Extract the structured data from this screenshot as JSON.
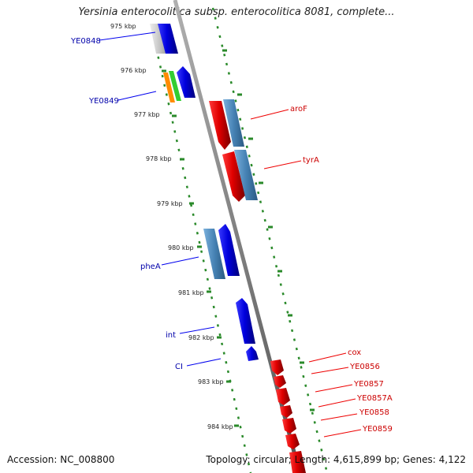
{
  "title": "Yersinia enterocolitica subsp. enterocolitica 8081, complete...",
  "footer": {
    "accession": "Accession: NC_008800",
    "topology": "Topology: circular; Length: 4,615,899 bp; Genes: 4,122"
  },
  "colors": {
    "forward_strand": "#0000ee",
    "reverse_strand": "#ee0000",
    "steel": "#4682b4",
    "axis": "#888888",
    "tick_dots": "#2a8a2a",
    "orange": "#ff8c00",
    "green": "#32cd32"
  },
  "kbp_ticks": [
    "975 kbp",
    "976 kbp",
    "977 kbp",
    "978 kbp",
    "979 kbp",
    "980 kbp",
    "981 kbp",
    "982 kbp",
    "983 kbp",
    "984 kbp"
  ],
  "left_labels": [
    "YE0848",
    "YE0849",
    "pheA",
    "int",
    "CI"
  ],
  "right_labels": [
    "aroF",
    "tyrA",
    "cox",
    "YE0856",
    "YE0857",
    "YE0857A",
    "YE0858",
    "YE0859"
  ]
}
